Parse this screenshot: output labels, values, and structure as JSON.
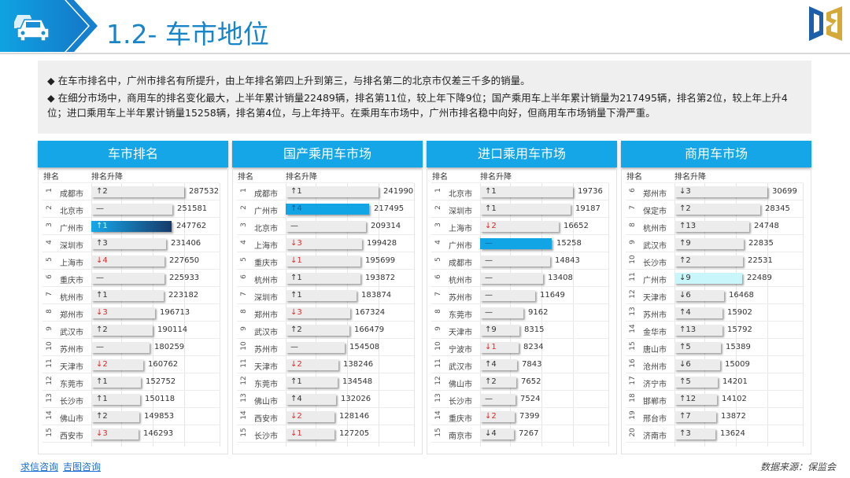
{
  "header": {
    "title": "1.2- 车市地位"
  },
  "summary": [
    "◆ 在车市排名中，广州市排名有所提升，由上年排名第四上升到第三，与排名第二的北京市仅差三千多的销量。",
    "◆ 在细分市场中，商用车的排名变化最大，上半年累计销量22489辆，排名第11位，较上年下降9位；国产乘用车上半年累计销量为217495辆，排名第2位，较上年上升4位；进口乘用车上半年累计销量15258辆，排名第4位，与上年持平。在乘用车市场中，广州市排名稳中向好，但商用车市场销量下滑严重。"
  ],
  "colors": {
    "accent": "#14a6e6",
    "down": "#e02a2a"
  },
  "panels": [
    {
      "title": "车市排名",
      "col_rank": "排名",
      "col_change": "排名升降",
      "max": 287532,
      "highlight": "gradient",
      "rows": [
        [
          "1",
          "成都市",
          "↑2",
          287532,
          0
        ],
        [
          "2",
          "北京市",
          "—",
          251581,
          0
        ],
        [
          "3",
          "广州市",
          "↑1",
          247762,
          0,
          1
        ],
        [
          "4",
          "深圳市",
          "↑3",
          231406,
          0
        ],
        [
          "5",
          "上海市",
          "↓4",
          227650,
          1
        ],
        [
          "6",
          "重庆市",
          "—",
          225933,
          0
        ],
        [
          "7",
          "杭州市",
          "↑1",
          223182,
          0
        ],
        [
          "8",
          "郑州市",
          "↓3",
          196713,
          1
        ],
        [
          "9",
          "武汉市",
          "↑2",
          190114,
          0
        ],
        [
          "10",
          "苏州市",
          "—",
          180259,
          0
        ],
        [
          "11",
          "天津市",
          "↓2",
          160762,
          1
        ],
        [
          "12",
          "东莞市",
          "↑1",
          152752,
          0
        ],
        [
          "13",
          "长沙市",
          "↑1",
          150118,
          0
        ],
        [
          "14",
          "佛山市",
          "↑2",
          149853,
          0
        ],
        [
          "15",
          "西安市",
          "↓3",
          146293,
          1
        ]
      ]
    },
    {
      "title": "国产乘用车市场",
      "col_rank": "排名",
      "col_change": "排名升降",
      "max": 241990,
      "highlight": "#12a5e6",
      "rows": [
        [
          "1",
          "成都市",
          "↑1",
          241990,
          0
        ],
        [
          "2",
          "广州市",
          "↑4",
          217495,
          0,
          1
        ],
        [
          "3",
          "北京市",
          "—",
          209314,
          0
        ],
        [
          "4",
          "上海市",
          "↓3",
          199428,
          1
        ],
        [
          "5",
          "重庆市",
          "↓1",
          195699,
          1
        ],
        [
          "6",
          "杭州市",
          "↑1",
          193872,
          0
        ],
        [
          "7",
          "深圳市",
          "↑1",
          183874,
          0
        ],
        [
          "8",
          "郑州市",
          "↓3",
          167324,
          1
        ],
        [
          "9",
          "武汉市",
          "↑2",
          166479,
          0
        ],
        [
          "10",
          "苏州市",
          "—",
          154508,
          0
        ],
        [
          "11",
          "天津市",
          "↓2",
          138246,
          1
        ],
        [
          "12",
          "东莞市",
          "↑1",
          134548,
          0
        ],
        [
          "13",
          "佛山市",
          "↑4",
          132026,
          0
        ],
        [
          "14",
          "西安市",
          "↓2",
          128146,
          1
        ],
        [
          "15",
          "长沙市",
          "↓1",
          127205,
          1
        ]
      ]
    },
    {
      "title": "进口乘用车市场",
      "col_rank": "排名",
      "col_change": "排名升降",
      "max": 19736,
      "highlight": "#12a5e6",
      "rows": [
        [
          "1",
          "北京市",
          "↑1",
          19736,
          0
        ],
        [
          "2",
          "深圳市",
          "↑1",
          19187,
          0
        ],
        [
          "3",
          "上海市",
          "↓2",
          16652,
          1
        ],
        [
          "4",
          "广州市",
          "—",
          15258,
          0,
          1
        ],
        [
          "5",
          "成都市",
          "—",
          14843,
          0
        ],
        [
          "6",
          "杭州市",
          "—",
          13408,
          0
        ],
        [
          "7",
          "苏州市",
          "—",
          11649,
          0
        ],
        [
          "8",
          "东莞市",
          "—",
          9162,
          0
        ],
        [
          "9",
          "天津市",
          "↑9",
          8315,
          0
        ],
        [
          "10",
          "宁波市",
          "↓1",
          8234,
          1
        ],
        [
          "11",
          "武汉市",
          "↑4",
          7843,
          0
        ],
        [
          "12",
          "佛山市",
          "↑2",
          7652,
          0
        ],
        [
          "13",
          "长沙市",
          "—",
          7524,
          0
        ],
        [
          "14",
          "重庆市",
          "↓2",
          7399,
          1
        ],
        [
          "15",
          "南京市",
          "↓4",
          7267,
          0
        ]
      ]
    },
    {
      "title": "商用车市场",
      "col_rank": "排名",
      "col_change": "排名升降",
      "max": 30699,
      "highlight": "#c9f6fa",
      "rows": [
        [
          "6",
          "郑州市",
          "↓3",
          30699,
          0
        ],
        [
          "7",
          "保定市",
          "↑2",
          28345,
          0
        ],
        [
          "8",
          "杭州市",
          "↑13",
          24748,
          0
        ],
        [
          "9",
          "武汉市",
          "↑9",
          22835,
          0
        ],
        [
          "10",
          "长沙市",
          "↑2",
          22531,
          0
        ],
        [
          "11",
          "广州市",
          "↓9",
          22489,
          0,
          1
        ],
        [
          "12",
          "天津市",
          "↓6",
          16468,
          0
        ],
        [
          "13",
          "苏州市",
          "↑4",
          15902,
          0
        ],
        [
          "14",
          "金华市",
          "↑13",
          15792,
          0
        ],
        [
          "15",
          "唐山市",
          "↑5",
          15389,
          0
        ],
        [
          "16",
          "沧州市",
          "↓6",
          15009,
          0
        ],
        [
          "17",
          "济宁市",
          "↑5",
          14201,
          0
        ],
        [
          "18",
          "邯郸市",
          "↑12",
          14102,
          0
        ],
        [
          "19",
          "邢台市",
          "↑7",
          13872,
          0
        ],
        [
          "20",
          "济南市",
          "↑3",
          13624,
          0
        ]
      ]
    }
  ],
  "footer": {
    "links": [
      "求信咨询",
      "吉图咨询"
    ],
    "source": "数据来源：保监会"
  },
  "logo": {
    "text": "DB"
  }
}
